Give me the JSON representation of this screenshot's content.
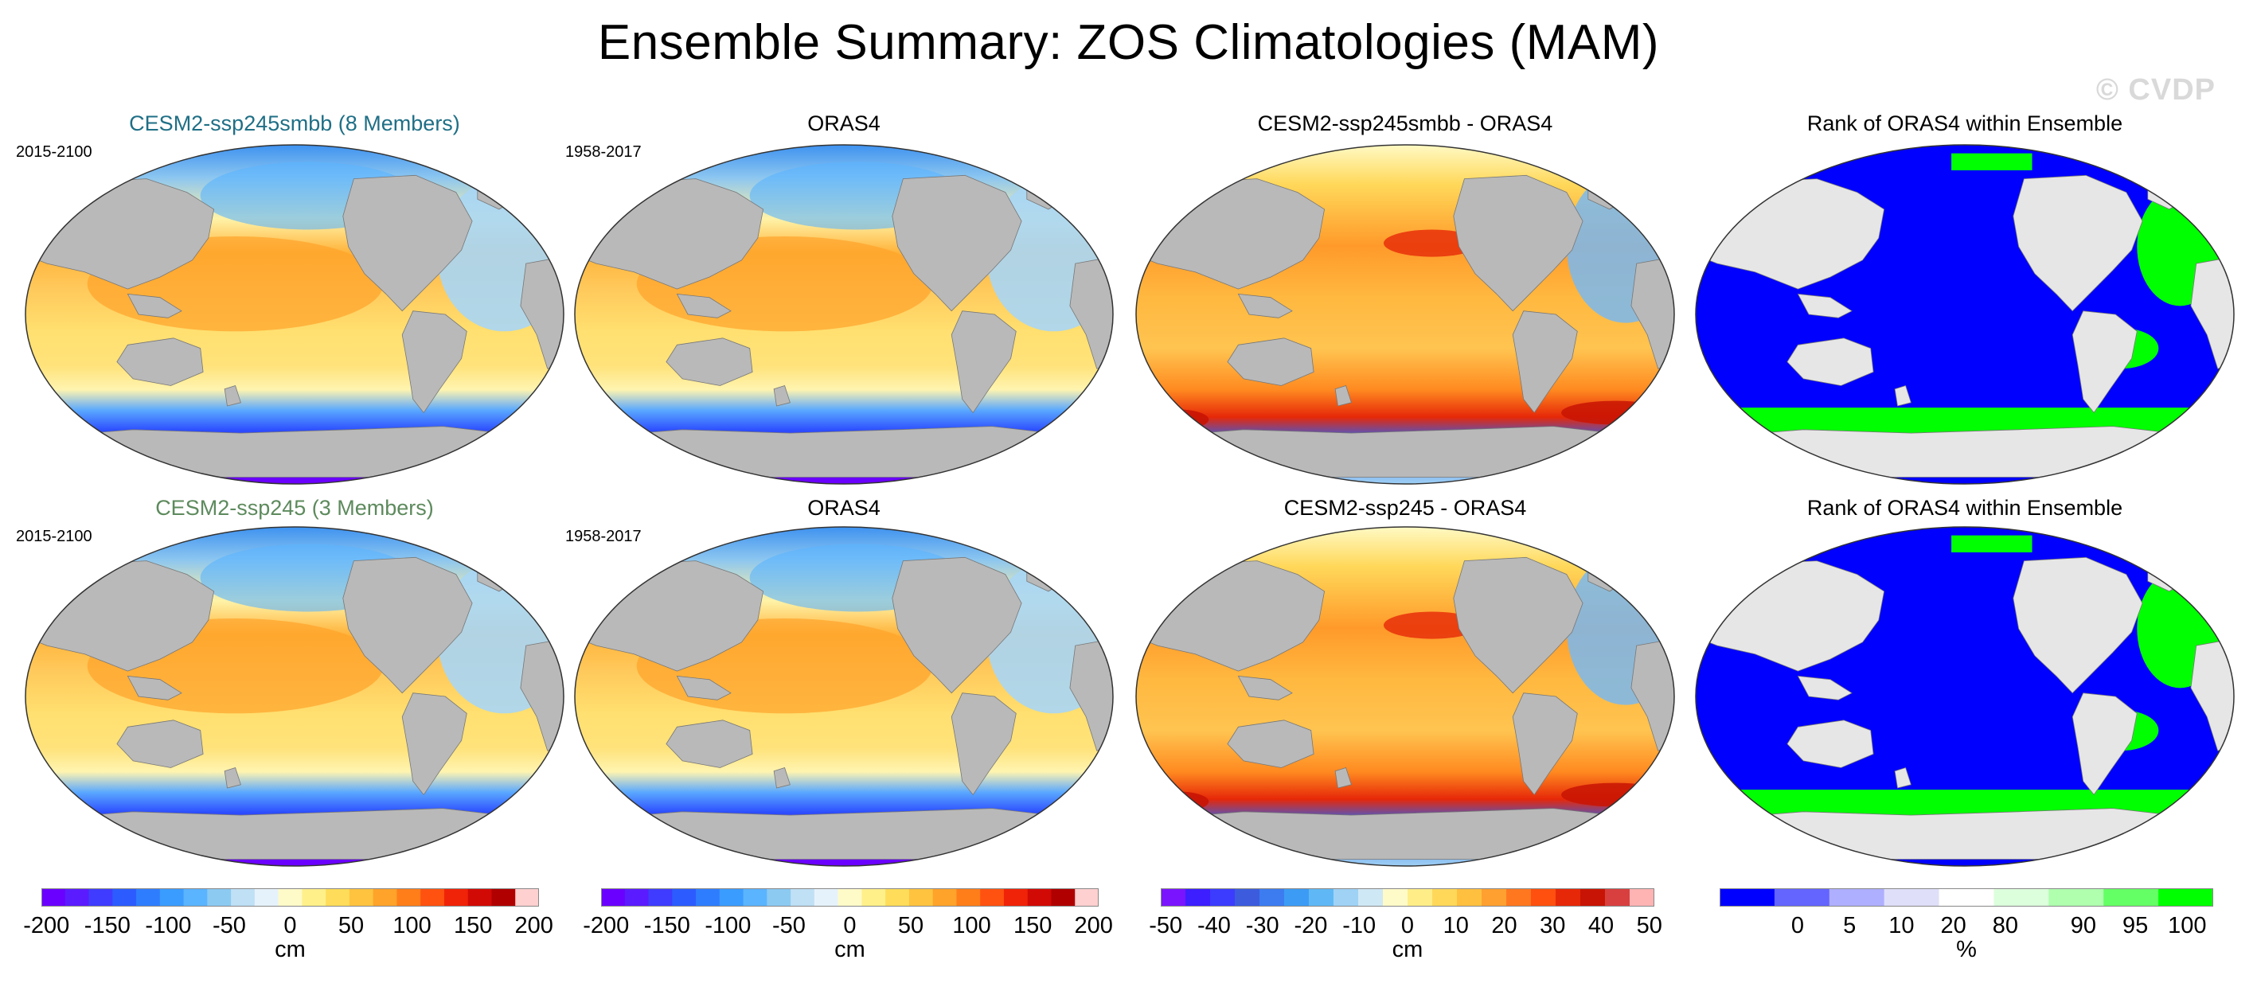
{
  "title": "Ensemble Summary: ZOS Climatologies (MAM)",
  "copyright": "© CVDP",
  "colors": {
    "land": "#b9b9b9",
    "rank_land": "#e6e6e6",
    "rank_blue": "#0000ff",
    "rank_green": "#00ff00"
  },
  "rows": [
    {
      "panels": [
        {
          "title": "CESM2-ssp245smbb (8 Members)",
          "title_color": "#1f6f86",
          "period": "2015-2100",
          "kind": "clim"
        },
        {
          "title": "ORAS4",
          "title_color": "#000000",
          "period": "1958-2017",
          "kind": "clim"
        },
        {
          "title": "CESM2-ssp245smbb - ORAS4",
          "title_color": "#000000",
          "period": "",
          "kind": "diff"
        },
        {
          "title": "Rank of ORAS4 within Ensemble",
          "title_color": "#000000",
          "period": "",
          "kind": "rank"
        }
      ]
    },
    {
      "panels": [
        {
          "title": "CESM2-ssp245 (3 Members)",
          "title_color": "#5d8a5d",
          "period": "2015-2100",
          "kind": "clim"
        },
        {
          "title": "ORAS4",
          "title_color": "#000000",
          "period": "1958-2017",
          "kind": "clim"
        },
        {
          "title": "CESM2-ssp245 - ORAS4",
          "title_color": "#000000",
          "period": "",
          "kind": "diff"
        },
        {
          "title": "Rank of ORAS4 within Ensemble",
          "title_color": "#000000",
          "period": "",
          "kind": "rank"
        }
      ]
    }
  ],
  "colorbars": [
    {
      "unit": "cm",
      "ticks": [
        "-200",
        "-150",
        "-100",
        "-50",
        "0",
        "50",
        "100",
        "150",
        "200"
      ],
      "colors": [
        "#6a00ff",
        "#5a1cff",
        "#3f3cff",
        "#2c5cff",
        "#2f7dff",
        "#3a9cff",
        "#5ab4ff",
        "#8ccaf2",
        "#bfe0f5",
        "#e6f2fb",
        "#fffbc8",
        "#fff08a",
        "#ffdd5a",
        "#ffc340",
        "#ffa32a",
        "#ff7e1a",
        "#ff5210",
        "#f02308",
        "#d10a05",
        "#b00000",
        "#ffd0d0"
      ]
    },
    {
      "unit": "cm",
      "ticks": [
        "-200",
        "-150",
        "-100",
        "-50",
        "0",
        "50",
        "100",
        "150",
        "200"
      ],
      "colors": [
        "#6a00ff",
        "#5a1cff",
        "#3f3cff",
        "#2c5cff",
        "#2f7dff",
        "#3a9cff",
        "#5ab4ff",
        "#8ccaf2",
        "#bfe0f5",
        "#e6f2fb",
        "#fffbc8",
        "#fff08a",
        "#ffdd5a",
        "#ffc340",
        "#ffa32a",
        "#ff7e1a",
        "#ff5210",
        "#f02308",
        "#d10a05",
        "#b00000",
        "#ffd0d0"
      ]
    },
    {
      "unit": "cm",
      "ticks": [
        "-50",
        "-40",
        "-30",
        "-20",
        "-10",
        "0",
        "10",
        "20",
        "30",
        "40",
        "50"
      ],
      "colors": [
        "#7a14ff",
        "#3c1eff",
        "#3c3cff",
        "#3c5cdd",
        "#3c7cf0",
        "#3c9cf5",
        "#5fb8f5",
        "#9fd2f5",
        "#cfe8f5",
        "#fffbc8",
        "#ffee88",
        "#ffd85a",
        "#ffc040",
        "#ffa030",
        "#ff7820",
        "#ff5010",
        "#e62808",
        "#c81404",
        "#d84040",
        "#ffb4b4"
      ]
    },
    {
      "unit": "%",
      "ticks": [
        "0",
        "5",
        "10",
        "20",
        "80",
        "90",
        "95",
        "100"
      ],
      "colors": [
        "#0000ff",
        "#6464ff",
        "#afafff",
        "#dfdff9",
        "#ffffff",
        "#dcffdc",
        "#afffaf",
        "#64ff64",
        "#00ff00"
      ]
    }
  ]
}
